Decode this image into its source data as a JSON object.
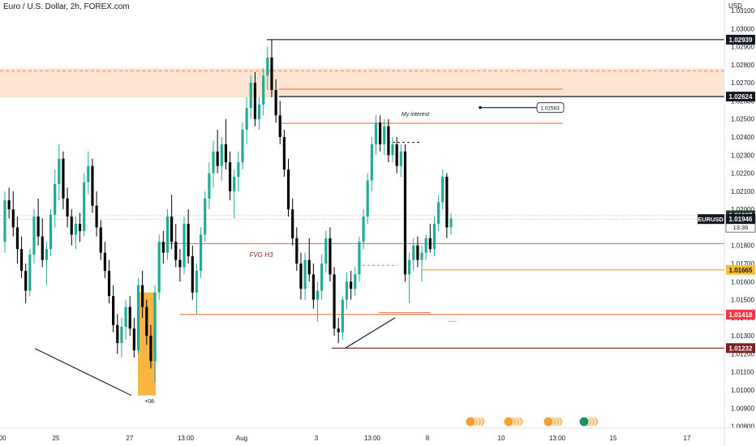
{
  "header": {
    "title": "Euro / U.S. Dollar, 2h, FOREX.com",
    "currency": "USD"
  },
  "chart_data": {
    "type": "candlestick",
    "symbol": "EURUSD",
    "interval": "2h",
    "ylim": [
      1.0075,
      1.0318
    ],
    "y_ticks": [
      "1.03100",
      "1.03000",
      "1.02900",
      "1.02800",
      "1.02700",
      "1.02600",
      "1.02500",
      "1.02400",
      "1.02300",
      "1.02200",
      "1.02100",
      "1.02000",
      "1.01900",
      "1.01800",
      "1.01700",
      "1.01600",
      "1.01500",
      "1.01400",
      "1.01300",
      "1.01200",
      "1.01100",
      "1.01000",
      "1.00900",
      "1.00800"
    ],
    "x_ticks": [
      ":00",
      "25",
      "27",
      "13:00",
      "Aug",
      "3",
      "13:00",
      "8",
      "10",
      "13:00",
      "15",
      "17"
    ],
    "colors": {
      "up": "#22ab94",
      "down": "#000000",
      "zone": "#fbdcc4",
      "orange_line": "#f2743c",
      "green_label": "#1e3d2f",
      "red_label": "#f23645",
      "yellow_label": "#fbc02d",
      "dark_red_label": "#7b1f1f"
    },
    "candles": [
      [
        1.0182,
        1.021,
        1.0176,
        1.0205
      ],
      [
        1.0205,
        1.0212,
        1.0195,
        1.02
      ],
      [
        1.02,
        1.021,
        1.0185,
        1.019
      ],
      [
        1.019,
        1.0196,
        1.017,
        1.0178
      ],
      [
        1.0178,
        1.0185,
        1.0162,
        1.0166
      ],
      [
        1.0166,
        1.017,
        1.0148,
        1.0155
      ],
      [
        1.0155,
        1.0178,
        1.0152,
        1.0175
      ],
      [
        1.0175,
        1.02,
        1.017,
        1.0196
      ],
      [
        1.0196,
        1.0206,
        1.018,
        1.0185
      ],
      [
        1.0185,
        1.0195,
        1.0168,
        1.0172
      ],
      [
        1.0172,
        1.0182,
        1.0158,
        1.0178
      ],
      [
        1.0178,
        1.02,
        1.0174,
        1.0197
      ],
      [
        1.0197,
        1.0222,
        1.019,
        1.0214
      ],
      [
        1.0214,
        1.0236,
        1.0205,
        1.0228
      ],
      [
        1.0228,
        1.0232,
        1.02,
        1.0206
      ],
      [
        1.0206,
        1.0212,
        1.019,
        1.0196
      ],
      [
        1.0196,
        1.02,
        1.018,
        1.0186
      ],
      [
        1.0186,
        1.0196,
        1.0178,
        1.0192
      ],
      [
        1.0192,
        1.0198,
        1.0182,
        1.0188
      ],
      [
        1.0188,
        1.022,
        1.0185,
        1.0215
      ],
      [
        1.0215,
        1.0232,
        1.0208,
        1.0224
      ],
      [
        1.0224,
        1.0228,
        1.0198,
        1.0202
      ],
      [
        1.0202,
        1.021,
        1.0185,
        1.019
      ],
      [
        1.019,
        1.0194,
        1.0172,
        1.0176
      ],
      [
        1.0176,
        1.0182,
        1.0162,
        1.0166
      ],
      [
        1.0166,
        1.0172,
        1.0148,
        1.0152
      ],
      [
        1.0152,
        1.0158,
        1.0132,
        1.0136
      ],
      [
        1.0136,
        1.0142,
        1.012,
        1.0126
      ],
      [
        1.0126,
        1.014,
        1.0118,
        1.0135
      ],
      [
        1.0135,
        1.015,
        1.0128,
        1.0146
      ],
      [
        1.0146,
        1.0152,
        1.013,
        1.0134
      ],
      [
        1.0134,
        1.014,
        1.0118,
        1.0122
      ],
      [
        1.0122,
        1.0162,
        1.012,
        1.0158
      ],
      [
        1.0158,
        1.0166,
        1.014,
        1.0146
      ],
      [
        1.0146,
        1.015,
        1.0125,
        1.013
      ],
      [
        1.013,
        1.0136,
        1.0112,
        1.0116
      ],
      [
        1.0116,
        1.0158,
        1.0104,
        1.0154
      ],
      [
        1.0154,
        1.0186,
        1.015,
        1.0182
      ],
      [
        1.0182,
        1.0188,
        1.017,
        1.0176
      ],
      [
        1.0176,
        1.02,
        1.0172,
        1.0196
      ],
      [
        1.0196,
        1.0208,
        1.0178,
        1.0182
      ],
      [
        1.0182,
        1.0192,
        1.0168,
        1.0172
      ],
      [
        1.0172,
        1.0178,
        1.016,
        1.0168
      ],
      [
        1.0168,
        1.0196,
        1.0164,
        1.0192
      ],
      [
        1.0192,
        1.02,
        1.017,
        1.0174
      ],
      [
        1.0174,
        1.018,
        1.015,
        1.0154
      ],
      [
        1.0154,
        1.017,
        1.0142,
        1.0166
      ],
      [
        1.0166,
        1.019,
        1.0162,
        1.0186
      ],
      [
        1.0186,
        1.021,
        1.0182,
        1.0206
      ],
      [
        1.0206,
        1.0226,
        1.02,
        1.022
      ],
      [
        1.022,
        1.0238,
        1.0212,
        1.0232
      ],
      [
        1.0232,
        1.0244,
        1.022,
        1.0224
      ],
      [
        1.0224,
        1.024,
        1.0216,
        1.0236
      ],
      [
        1.0236,
        1.025,
        1.0222,
        1.0226
      ],
      [
        1.0226,
        1.0232,
        1.0205,
        1.021
      ],
      [
        1.021,
        1.0222,
        1.0195,
        1.0218
      ],
      [
        1.0218,
        1.0232,
        1.021,
        1.0226
      ],
      [
        1.0226,
        1.0248,
        1.0222,
        1.0244
      ],
      [
        1.0244,
        1.0262,
        1.0236,
        1.0256
      ],
      [
        1.0256,
        1.0274,
        1.025,
        1.027
      ],
      [
        1.027,
        1.0276,
        1.0246,
        1.025
      ],
      [
        1.025,
        1.0262,
        1.0244,
        1.0258
      ],
      [
        1.0258,
        1.0278,
        1.0252,
        1.0274
      ],
      [
        1.0274,
        1.029,
        1.0266,
        1.0284
      ],
      [
        1.0284,
        1.0294,
        1.0262,
        1.0266
      ],
      [
        1.0266,
        1.0272,
        1.0248,
        1.0252
      ],
      [
        1.0252,
        1.026,
        1.0236,
        1.024
      ],
      [
        1.024,
        1.0244,
        1.0218,
        1.0222
      ],
      [
        1.0222,
        1.0228,
        1.0196,
        1.02
      ],
      [
        1.02,
        1.0206,
        1.018,
        1.0184
      ],
      [
        1.0184,
        1.019,
        1.0166,
        1.017
      ],
      [
        1.017,
        1.0176,
        1.015,
        1.0156
      ],
      [
        1.0156,
        1.0176,
        1.015,
        1.0172
      ],
      [
        1.0172,
        1.0184,
        1.016,
        1.0164
      ],
      [
        1.0164,
        1.017,
        1.0145,
        1.015
      ],
      [
        1.015,
        1.016,
        1.0138,
        1.0155
      ],
      [
        1.0155,
        1.0175,
        1.015,
        1.017
      ],
      [
        1.017,
        1.0188,
        1.0165,
        1.0184
      ],
      [
        1.0184,
        1.019,
        1.016,
        1.0164
      ],
      [
        1.0164,
        1.0168,
        1.013,
        1.0134
      ],
      [
        1.0134,
        1.014,
        1.0126,
        1.0132
      ],
      [
        1.0132,
        1.0152,
        1.0128,
        1.015
      ],
      [
        1.015,
        1.0165,
        1.0145,
        1.016
      ],
      [
        1.016,
        1.0166,
        1.015,
        1.0156
      ],
      [
        1.0156,
        1.0168,
        1.0152,
        1.0164
      ],
      [
        1.0164,
        1.0185,
        1.016,
        1.0182
      ],
      [
        1.0182,
        1.02,
        1.0178,
        1.0196
      ],
      [
        1.0196,
        1.022,
        1.0192,
        1.0216
      ],
      [
        1.0216,
        1.024,
        1.021,
        1.0236
      ],
      [
        1.0236,
        1.0252,
        1.023,
        1.0248
      ],
      [
        1.0248,
        1.0252,
        1.0232,
        1.0236
      ],
      [
        1.0236,
        1.025,
        1.023,
        1.0246
      ],
      [
        1.0246,
        1.025,
        1.0226,
        1.023
      ],
      [
        1.023,
        1.024,
        1.0226,
        1.0236
      ],
      [
        1.0236,
        1.024,
        1.022,
        1.0224
      ],
      [
        1.0224,
        1.0236,
        1.0218,
        1.0232
      ],
      [
        1.0232,
        1.0236,
        1.016,
        1.0164
      ],
      [
        1.0164,
        1.0176,
        1.0148,
        1.0172
      ],
      [
        1.0172,
        1.0184,
        1.0166,
        1.018
      ],
      [
        1.018,
        1.0185,
        1.0168,
        1.0172
      ],
      [
        1.0172,
        1.018,
        1.016,
        1.0176
      ],
      [
        1.0176,
        1.0186,
        1.0172,
        1.0184
      ],
      [
        1.0184,
        1.0192,
        1.0176,
        1.0178
      ],
      [
        1.0178,
        1.0196,
        1.0174,
        1.0192
      ],
      [
        1.0192,
        1.0208,
        1.0188,
        1.0204
      ],
      [
        1.0204,
        1.0222,
        1.02,
        1.0218
      ],
      [
        1.0218,
        1.022,
        1.0184,
        1.019
      ],
      [
        1.019,
        1.0198,
        1.0186,
        1.0195
      ]
    ],
    "levels": [
      {
        "price": 1.02939,
        "label": "1.02939",
        "style": "solid",
        "color": "#000000"
      },
      {
        "price": 1.02624,
        "label": "1.02624",
        "style": "solid",
        "color": "#000000"
      },
      {
        "price": 1.01967,
        "label": "1.01967",
        "style": "dotted",
        "color": "#1e3d2f"
      },
      {
        "price": 1.01946,
        "label": "1.01946",
        "style": "dotted",
        "color": "#000000"
      },
      {
        "price": 1.01665,
        "label": "1.01665",
        "style": "solid",
        "color": "#fbc02d"
      },
      {
        "price": 1.01418,
        "label": "1.01418",
        "style": "solid",
        "color": "#f23645"
      },
      {
        "price": 1.01232,
        "label": "1.01232",
        "style": "solid",
        "color": "#7b1f1f"
      }
    ],
    "symbol_label": "EURUSD",
    "countdown": "13:36",
    "zone": {
      "top": 1.0278,
      "bottom": 1.0262
    },
    "annotations": {
      "my_interest_text": "My interest",
      "my_interest_price": "1.02563",
      "fvg_text": "FVG H3",
      "marker_text": "+08"
    }
  }
}
